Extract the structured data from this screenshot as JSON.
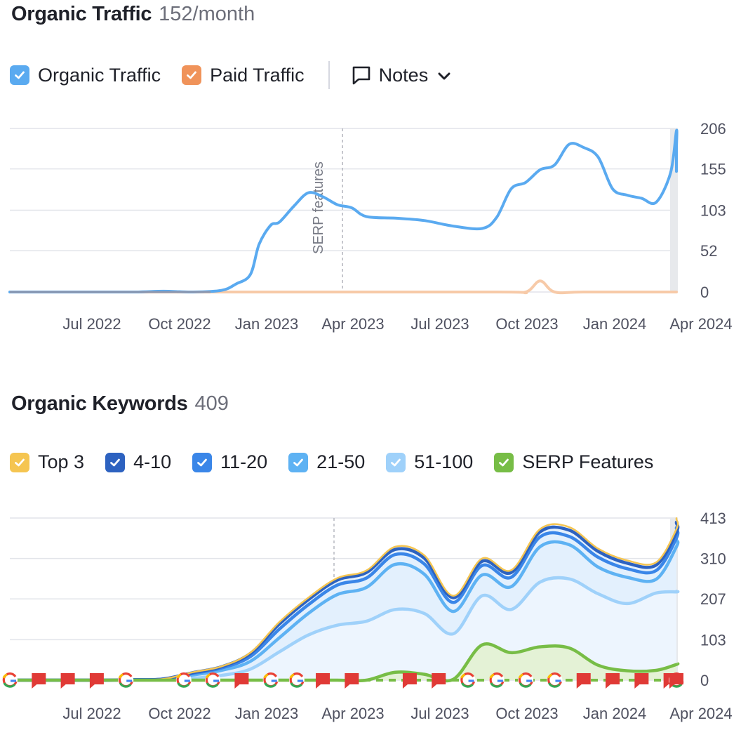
{
  "traffic": {
    "title": "Organic Traffic",
    "metric": "152/month",
    "legend": [
      {
        "label": "Organic Traffic",
        "color": "#5aaaf0"
      },
      {
        "label": "Paid Traffic",
        "color": "#f0935a"
      }
    ],
    "notes_label": "Notes"
  },
  "keywords": {
    "title": "Organic Keywords",
    "metric": "409",
    "legend": [
      {
        "label": "Top 3",
        "color": "#f5c551"
      },
      {
        "label": "4-10",
        "color": "#2d62c0"
      },
      {
        "label": "11-20",
        "color": "#3a86e8"
      },
      {
        "label": "21-50",
        "color": "#5eb2f3"
      },
      {
        "label": "51-100",
        "color": "#9fd1fa"
      },
      {
        "label": "SERP Features",
        "color": "#77bd46"
      }
    ]
  },
  "chart_data": [
    {
      "type": "line",
      "title": "Organic Traffic",
      "x_ticks": [
        "Jul 2022",
        "Oct 2022",
        "Jan 2023",
        "Apr 2023",
        "Jul 2023",
        "Oct 2023",
        "Jan 2024",
        "Apr 2024"
      ],
      "y_ticks": [
        0,
        52,
        103,
        155,
        206
      ],
      "ylim": [
        0,
        206
      ],
      "x_range": [
        "Mar 2022",
        "Apr 2024"
      ],
      "annotation": {
        "label": "SERP features",
        "at": 10.6
      },
      "series": [
        {
          "name": "Organic Traffic",
          "color": "#5aaaf0",
          "x": [
            -0.3,
            0,
            2,
            4,
            5,
            6,
            7,
            7.5,
            8,
            8.3,
            8.7,
            9,
            9.5,
            10,
            10.5,
            11,
            11.5,
            12,
            13,
            14,
            15,
            16,
            16.5,
            17,
            17.5,
            18,
            18.5,
            19,
            19.5,
            20,
            20.5,
            21,
            21.5,
            22,
            22.5,
            23,
            23.5,
            24,
            24.2
          ],
          "y": [
            0,
            0,
            0,
            0,
            1,
            0,
            2,
            10,
            22,
            60,
            84,
            88,
            108,
            125,
            120,
            110,
            106,
            95,
            93,
            90,
            83,
            80,
            94,
            130,
            138,
            154,
            160,
            186,
            182,
            170,
            130,
            122,
            118,
            113,
            150,
            203,
            180,
            155,
            152
          ]
        },
        {
          "name": "Paid Traffic",
          "color": "#f7caa8",
          "x": [
            -0.3,
            7.5,
            16.5,
            17.5,
            18,
            18.5,
            19.5,
            24.2
          ],
          "y": [
            0,
            0,
            0,
            0,
            14,
            0,
            0,
            0
          ]
        }
      ]
    },
    {
      "type": "area",
      "title": "Organic Keywords",
      "x_ticks": [
        "Jul 2022",
        "Oct 2022",
        "Jan 2023",
        "Apr 2023",
        "Jul 2023",
        "Oct 2023",
        "Jan 2024",
        "Apr 2024"
      ],
      "y_ticks": [
        0,
        103,
        207,
        310,
        413
      ],
      "ylim": [
        0,
        413
      ],
      "x": [
        -0.3,
        0,
        1,
        2,
        3,
        4,
        5,
        6,
        7,
        8,
        9,
        10,
        11,
        12,
        13,
        14,
        15,
        16,
        17,
        18,
        19,
        20,
        21,
        22,
        23,
        24,
        24.2
      ],
      "series": [
        {
          "name": "Top 3",
          "color": "#f5c551",
          "values": [
            0,
            0,
            0,
            0,
            0,
            1,
            3,
            20,
            35,
            70,
            148,
            210,
            260,
            279,
            340,
            318,
            215,
            310,
            280,
            385,
            390,
            335,
            305,
            300,
            385,
            410,
            412
          ]
        },
        {
          "name": "4-10",
          "color": "#2d62c0",
          "values": [
            0,
            0,
            0,
            0,
            0,
            1,
            3,
            19,
            34,
            68,
            143,
            205,
            255,
            274,
            333,
            311,
            210,
            303,
            274,
            378,
            382,
            328,
            298,
            293,
            377,
            400,
            402
          ]
        },
        {
          "name": "11-20",
          "color": "#3a86e8",
          "values": [
            0,
            0,
            0,
            0,
            0,
            1,
            3,
            17,
            31,
            60,
            130,
            192,
            242,
            260,
            320,
            296,
            198,
            292,
            262,
            365,
            366,
            313,
            284,
            279,
            362,
            386,
            388
          ]
        },
        {
          "name": "21-50",
          "color": "#5eb2f3",
          "values": [
            0,
            0,
            0,
            0,
            0,
            1,
            2,
            13,
            25,
            48,
            108,
            170,
            218,
            236,
            295,
            270,
            175,
            268,
            238,
            340,
            345,
            288,
            262,
            257,
            340,
            356,
            358
          ]
        },
        {
          "name": "51-100",
          "color": "#9fd1fa",
          "values": [
            0,
            0,
            0,
            0,
            0,
            1,
            1,
            5,
            12,
            28,
            72,
            115,
            140,
            150,
            180,
            170,
            118,
            215,
            180,
            250,
            258,
            220,
            195,
            222,
            225,
            226,
            226
          ]
        },
        {
          "name": "SERP Features",
          "color": "#77bd46",
          "values": [
            0,
            0,
            0,
            0,
            0,
            0,
            0,
            0,
            0,
            0,
            0,
            0,
            0,
            0,
            20,
            15,
            2,
            90,
            70,
            85,
            82,
            38,
            24,
            25,
            40,
            42,
            43
          ]
        }
      ],
      "markers": [
        {
          "type": "google",
          "x": -0.3
        },
        {
          "type": "note",
          "x": 0.7
        },
        {
          "type": "note",
          "x": 1.7
        },
        {
          "type": "note",
          "x": 2.7
        },
        {
          "type": "google",
          "x": 3.7
        },
        {
          "type": "google",
          "x": 5.7
        },
        {
          "type": "google",
          "x": 6.7
        },
        {
          "type": "note",
          "x": 7.7
        },
        {
          "type": "google",
          "x": 8.7
        },
        {
          "type": "google",
          "x": 9.6
        },
        {
          "type": "note",
          "x": 10.5
        },
        {
          "type": "note",
          "x": 11.5
        },
        {
          "type": "note",
          "x": 13.5
        },
        {
          "type": "note",
          "x": 14.5
        },
        {
          "type": "google",
          "x": 15.5
        },
        {
          "type": "google",
          "x": 16.5
        },
        {
          "type": "google",
          "x": 17.5
        },
        {
          "type": "google",
          "x": 18.5
        },
        {
          "type": "note",
          "x": 19.5
        },
        {
          "type": "note",
          "x": 20.5
        },
        {
          "type": "note",
          "x": 21.5
        },
        {
          "type": "note",
          "x": 22.5
        },
        {
          "type": "google",
          "x": 23.5
        },
        {
          "type": "note",
          "x": 24.2
        }
      ]
    }
  ]
}
